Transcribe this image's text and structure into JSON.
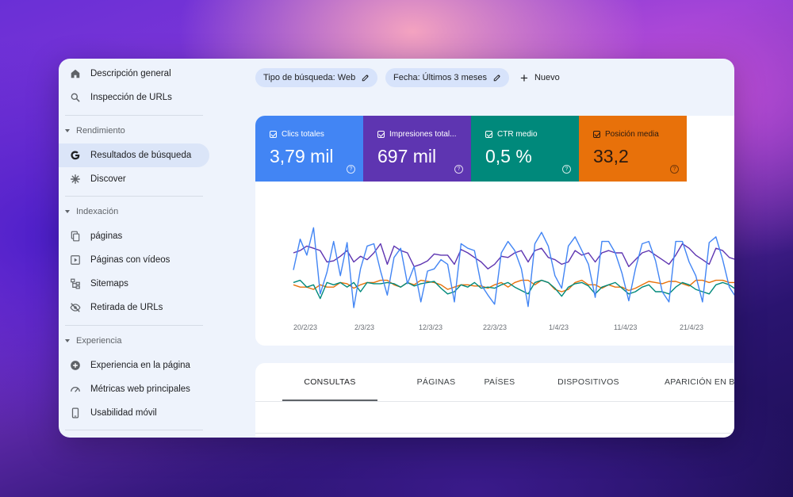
{
  "sidebar": {
    "top_items": [
      {
        "label": "Descripción general",
        "icon": "home-icon"
      },
      {
        "label": "Inspección de URLs",
        "icon": "search-icon"
      }
    ],
    "sections": [
      {
        "title": "Rendimiento",
        "items": [
          {
            "label": "Resultados de búsqueda",
            "icon": "google-g-icon",
            "active": true
          },
          {
            "label": "Discover",
            "icon": "asterisk-icon"
          }
        ]
      },
      {
        "title": "Indexación",
        "items": [
          {
            "label": "páginas",
            "icon": "pages-icon"
          },
          {
            "label": "Páginas con vídeos",
            "icon": "video-page-icon"
          },
          {
            "label": "Sitemaps",
            "icon": "sitemap-icon"
          },
          {
            "label": "Retirada de URLs",
            "icon": "eye-off-icon"
          }
        ]
      },
      {
        "title": "Experiencia",
        "items": [
          {
            "label": "Experiencia en la página",
            "icon": "plus-circle-icon"
          },
          {
            "label": "Métricas web principales",
            "icon": "gauge-icon"
          },
          {
            "label": "Usabilidad móvil",
            "icon": "phone-icon"
          }
        ]
      }
    ]
  },
  "filters": {
    "search_type": "Tipo de búsqueda: Web",
    "date": "Fecha: Últimos 3 meses",
    "new_label": "Nuevo"
  },
  "metrics": [
    {
      "label": "Clics totales",
      "value": "3,79 mil",
      "color": "#4285f4"
    },
    {
      "label": "Impresiones total...",
      "value": "697 mil",
      "color": "#5e35b1"
    },
    {
      "label": "CTR medio",
      "value": "0,5 %",
      "color": "#00897b"
    },
    {
      "label": "Posición media",
      "value": "33,2",
      "color": "#e8710a"
    }
  ],
  "chart_data": {
    "type": "line",
    "x_tick_labels": [
      "20/2/23",
      "2/3/23",
      "12/3/23",
      "22/3/23",
      "1/4/23",
      "11/4/23",
      "21/4/23"
    ],
    "series": [
      {
        "name": "Clics totales",
        "color": "#4285f4",
        "values": [
          0.35,
          0.62,
          0.48,
          0.72,
          0.14,
          0.33,
          0.6,
          0.3,
          0.59,
          0.02,
          0.36,
          0.56,
          0.58,
          0.34,
          0.13,
          0.46,
          0.54,
          0.23,
          0.38,
          0.07,
          0.34,
          0.36,
          0.44,
          0.4,
          0.07,
          0.58,
          0.54,
          0.52,
          0.22,
          0.13,
          0.05,
          0.5,
          0.6,
          0.52,
          0.36,
          0.03,
          0.58,
          0.68,
          0.56,
          0.3,
          0.19,
          0.56,
          0.64,
          0.52,
          0.4,
          0.11,
          0.6,
          0.6,
          0.5,
          0.32,
          0.08,
          0.36,
          0.58,
          0.6,
          0.43,
          0.16,
          0.07,
          0.6,
          0.6,
          0.42,
          0.3,
          0.07,
          0.59,
          0.64,
          0.44,
          0.2,
          0.11,
          0.38,
          0.62,
          0.54,
          0.53
        ]
      },
      {
        "name": "Impresiones totales",
        "color": "#5e35b1",
        "values": [
          0.5,
          0.52,
          0.56,
          0.54,
          0.52,
          0.42,
          0.43,
          0.47,
          0.52,
          0.42,
          0.47,
          0.44,
          0.5,
          0.58,
          0.4,
          0.56,
          0.52,
          0.5,
          0.38,
          0.4,
          0.43,
          0.49,
          0.48,
          0.48,
          0.4,
          0.53,
          0.5,
          0.46,
          0.42,
          0.36,
          0.4,
          0.47,
          0.46,
          0.5,
          0.52,
          0.42,
          0.52,
          0.54,
          0.46,
          0.44,
          0.4,
          0.42,
          0.52,
          0.48,
          0.5,
          0.42,
          0.5,
          0.52,
          0.5,
          0.5,
          0.38,
          0.44,
          0.5,
          0.52,
          0.48,
          0.44,
          0.4,
          0.48,
          0.58,
          0.54,
          0.48,
          0.44,
          0.4,
          0.54,
          0.52,
          0.46,
          0.44,
          0.38,
          0.52,
          0.52,
          0.52
        ]
      },
      {
        "name": "CTR medio",
        "color": "#00897b",
        "values": [
          0.24,
          0.26,
          0.2,
          0.22,
          0.1,
          0.24,
          0.22,
          0.24,
          0.2,
          0.24,
          0.16,
          0.24,
          0.23,
          0.23,
          0.24,
          0.23,
          0.2,
          0.24,
          0.21,
          0.23,
          0.24,
          0.25,
          0.19,
          0.14,
          0.16,
          0.22,
          0.2,
          0.24,
          0.19,
          0.2,
          0.19,
          0.22,
          0.24,
          0.2,
          0.17,
          0.14,
          0.24,
          0.26,
          0.24,
          0.19,
          0.12,
          0.2,
          0.23,
          0.24,
          0.21,
          0.14,
          0.2,
          0.22,
          0.24,
          0.19,
          0.14,
          0.16,
          0.2,
          0.22,
          0.16,
          0.16,
          0.14,
          0.2,
          0.24,
          0.22,
          0.18,
          0.16,
          0.14,
          0.22,
          0.24,
          0.22,
          0.18,
          0.12,
          0.18,
          0.2,
          0.19
        ]
      },
      {
        "name": "Posición media",
        "color": "#e8710a",
        "values": [
          0.22,
          0.2,
          0.2,
          0.18,
          0.22,
          0.2,
          0.2,
          0.24,
          0.23,
          0.19,
          0.22,
          0.24,
          0.24,
          0.26,
          0.26,
          0.22,
          0.2,
          0.24,
          0.22,
          0.26,
          0.25,
          0.24,
          0.22,
          0.18,
          0.2,
          0.22,
          0.22,
          0.21,
          0.21,
          0.19,
          0.22,
          0.24,
          0.2,
          0.24,
          0.26,
          0.26,
          0.22,
          0.26,
          0.24,
          0.18,
          0.16,
          0.18,
          0.24,
          0.26,
          0.22,
          0.22,
          0.19,
          0.22,
          0.2,
          0.2,
          0.17,
          0.19,
          0.22,
          0.25,
          0.24,
          0.23,
          0.25,
          0.25,
          0.23,
          0.21,
          0.26,
          0.26,
          0.24,
          0.26,
          0.26,
          0.24,
          0.24,
          0.24,
          0.26,
          0.28,
          0.26
        ]
      }
    ]
  },
  "tabs": [
    "CONSULTAS",
    "PÁGINAS",
    "PAÍSES",
    "DISPOSITIVOS",
    "APARICIÓN EN BÚS"
  ]
}
